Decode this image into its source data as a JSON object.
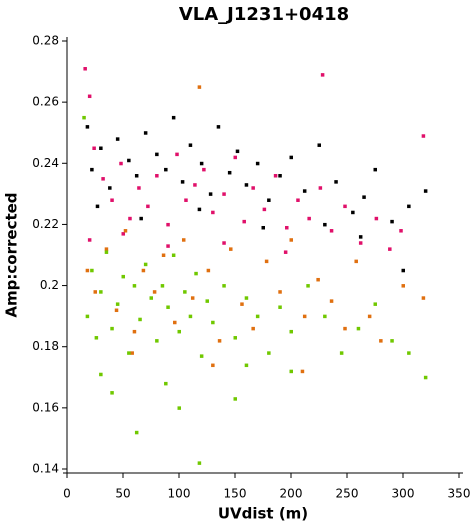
{
  "chart_data": {
    "type": "scatter",
    "title": "VLA_J1231+0418",
    "xlabel": "UVdist (m)",
    "ylabel": "Amp:corrected",
    "xlim": [
      0,
      350
    ],
    "ylim": [
      0.14,
      0.28
    ],
    "xticks": [
      0,
      50,
      100,
      150,
      200,
      250,
      300,
      350
    ],
    "yticks": [
      0.14,
      0.16,
      0.18,
      0.2,
      0.22,
      0.24,
      0.26,
      0.28
    ],
    "series": [
      {
        "color": "#000000",
        "x": [
          18,
          22,
          30,
          38,
          45,
          55,
          62,
          70,
          80,
          88,
          95,
          103,
          110,
          120,
          128,
          135,
          145,
          152,
          160,
          170,
          180,
          190,
          200,
          212,
          225,
          240,
          255,
          265,
          275,
          290,
          305,
          320,
          27,
          66,
          118,
          175,
          230,
          262,
          300
        ],
        "y": [
          0.252,
          0.238,
          0.245,
          0.232,
          0.248,
          0.241,
          0.236,
          0.25,
          0.243,
          0.238,
          0.255,
          0.234,
          0.246,
          0.24,
          0.23,
          0.252,
          0.237,
          0.244,
          0.233,
          0.24,
          0.228,
          0.236,
          0.242,
          0.231,
          0.246,
          0.234,
          0.224,
          0.229,
          0.238,
          0.221,
          0.226,
          0.231,
          0.226,
          0.222,
          0.225,
          0.219,
          0.22,
          0.216,
          0.205
        ]
      },
      {
        "color": "#e0106a",
        "x": [
          16,
          20,
          24,
          32,
          40,
          48,
          56,
          64,
          72,
          80,
          90,
          98,
          106,
          114,
          122,
          130,
          140,
          150,
          158,
          166,
          176,
          186,
          196,
          206,
          216,
          226,
          236,
          248,
          262,
          276,
          288,
          298,
          318,
          228,
          20,
          50,
          90,
          140,
          195
        ],
        "y": [
          0.271,
          0.262,
          0.245,
          0.235,
          0.228,
          0.24,
          0.222,
          0.232,
          0.226,
          0.236,
          0.22,
          0.243,
          0.228,
          0.233,
          0.238,
          0.224,
          0.23,
          0.242,
          0.221,
          0.232,
          0.225,
          0.236,
          0.219,
          0.228,
          0.222,
          0.232,
          0.218,
          0.226,
          0.214,
          0.222,
          0.212,
          0.218,
          0.249,
          0.269,
          0.215,
          0.217,
          0.213,
          0.214,
          0.211
        ]
      },
      {
        "color": "#e07010",
        "x": [
          18,
          25,
          35,
          44,
          52,
          60,
          68,
          78,
          86,
          96,
          104,
          112,
          118,
          126,
          136,
          146,
          156,
          166,
          178,
          190,
          200,
          212,
          224,
          236,
          248,
          258,
          270,
          280,
          300,
          318,
          58,
          130,
          210
        ],
        "y": [
          0.205,
          0.198,
          0.212,
          0.192,
          0.218,
          0.185,
          0.205,
          0.198,
          0.21,
          0.188,
          0.215,
          0.196,
          0.265,
          0.205,
          0.182,
          0.212,
          0.194,
          0.186,
          0.208,
          0.198,
          0.215,
          0.19,
          0.202,
          0.195,
          0.186,
          0.208,
          0.19,
          0.182,
          0.2,
          0.196,
          0.178,
          0.174,
          0.172
        ]
      },
      {
        "color": "#70c800",
        "x": [
          15,
          18,
          22,
          26,
          30,
          35,
          40,
          45,
          50,
          55,
          60,
          65,
          70,
          75,
          80,
          85,
          90,
          95,
          100,
          105,
          110,
          115,
          120,
          125,
          130,
          140,
          150,
          160,
          170,
          180,
          190,
          200,
          215,
          230,
          245,
          260,
          275,
          290,
          305,
          320,
          62,
          118,
          40,
          88,
          150,
          200,
          30,
          100,
          160
        ],
        "y": [
          0.255,
          0.19,
          0.205,
          0.183,
          0.198,
          0.211,
          0.186,
          0.194,
          0.203,
          0.178,
          0.2,
          0.189,
          0.207,
          0.196,
          0.182,
          0.2,
          0.193,
          0.21,
          0.185,
          0.198,
          0.19,
          0.204,
          0.177,
          0.195,
          0.188,
          0.2,
          0.183,
          0.196,
          0.19,
          0.178,
          0.193,
          0.185,
          0.2,
          0.19,
          0.178,
          0.186,
          0.194,
          0.182,
          0.178,
          0.17,
          0.152,
          0.142,
          0.165,
          0.168,
          0.163,
          0.172,
          0.171,
          0.16,
          0.174
        ]
      }
    ]
  }
}
